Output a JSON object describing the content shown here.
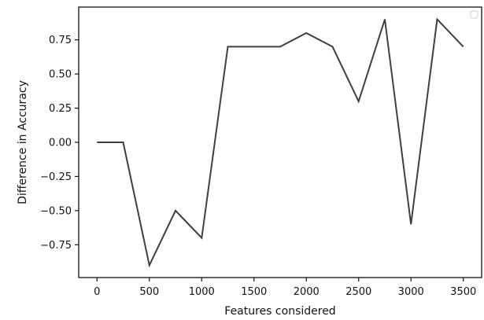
{
  "chart_data": {
    "type": "line",
    "title": "",
    "xlabel": "Features considered",
    "ylabel": "Difference in Accuracy",
    "x": [
      0,
      250,
      500,
      750,
      1000,
      1250,
      1500,
      1750,
      2000,
      2250,
      2500,
      2750,
      3000,
      3250,
      3500
    ],
    "series": [
      {
        "values": [
          0.0,
          0.0,
          -0.9,
          -0.5,
          -0.7,
          0.7,
          0.7,
          0.7,
          0.8,
          0.7,
          0.3,
          0.9,
          -0.6,
          0.9,
          0.7
        ]
      }
    ],
    "xlim": [
      -175,
      3675
    ],
    "ylim": [
      -0.99,
      0.99
    ],
    "xticks": [
      0,
      500,
      1000,
      1500,
      2000,
      2500,
      3000,
      3500
    ],
    "xtick_labels": [
      "0",
      "500",
      "1000",
      "1500",
      "2000",
      "2500",
      "3000",
      "3500"
    ],
    "yticks": [
      0.75,
      0.5,
      0.25,
      0.0,
      -0.25,
      -0.5,
      -0.75
    ],
    "ytick_labels": [
      "0.75",
      "0.50",
      "0.25",
      "0.00",
      "−0.25",
      "−0.50",
      "−0.75"
    ],
    "grid": false,
    "legend": "top-right (empty)",
    "colors": {
      "line": "#3f3f3f",
      "axes": "#111111"
    }
  }
}
